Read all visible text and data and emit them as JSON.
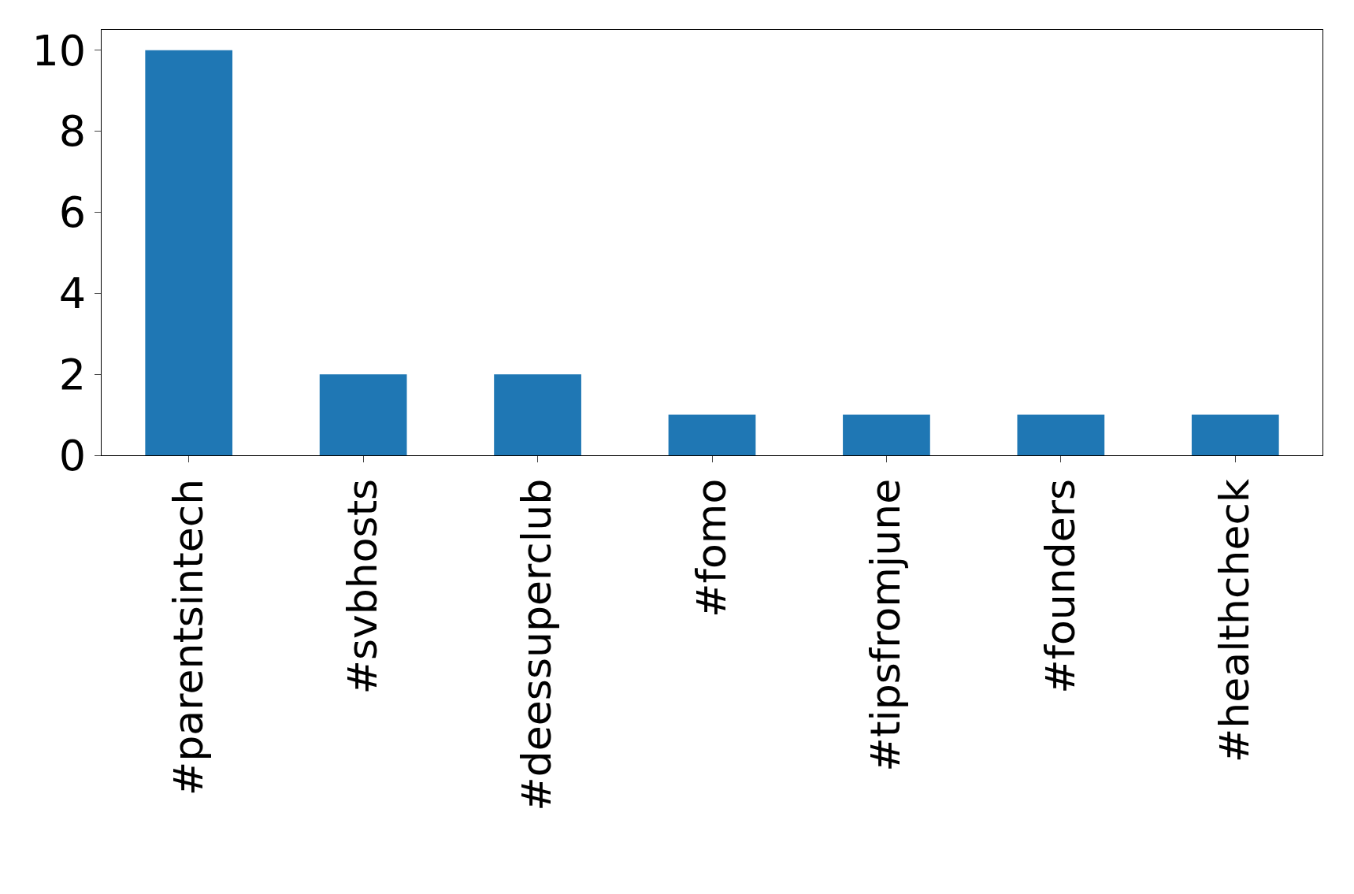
{
  "chart_data": {
    "type": "bar",
    "categories": [
      "#parentsintech",
      "#svbhosts",
      "#deessuperclub",
      "#fomo",
      "#tipsfromjune",
      "#founders",
      "#healthcheck"
    ],
    "values": [
      10,
      2,
      2,
      1,
      1,
      1,
      1
    ],
    "color": "#1f77b4",
    "ylim": [
      0,
      10.5
    ],
    "yticks": [
      0,
      2,
      4,
      6,
      8,
      10
    ]
  }
}
